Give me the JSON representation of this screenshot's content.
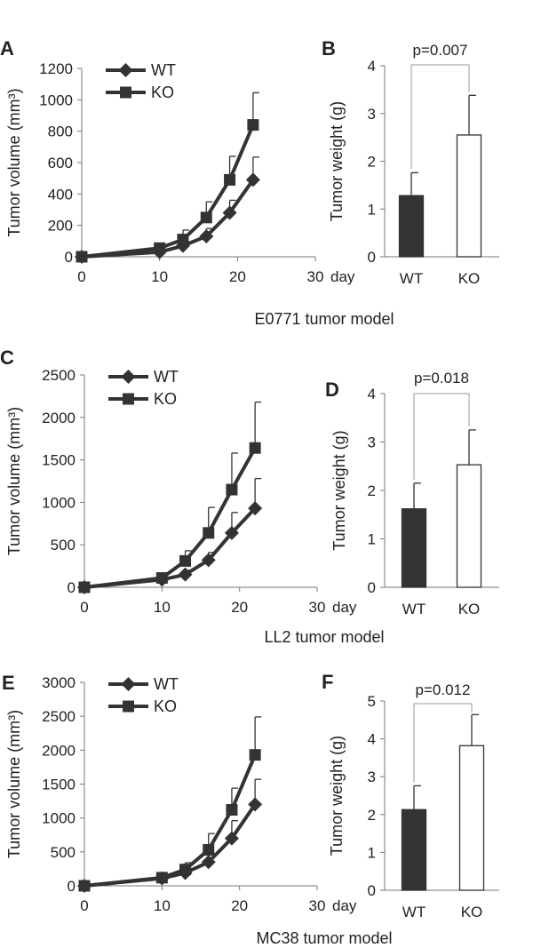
{
  "colors": {
    "line": "#333333",
    "bar_wt": "#333333",
    "bar_ko": "#ffffff",
    "axis": "#777777",
    "bracket": "#999999"
  },
  "chart_data": [
    {
      "id": "A",
      "type": "line",
      "panel_label": "A",
      "ylabel": "Tumor volume (mm³)",
      "ylim": [
        0,
        1200
      ],
      "yticks": [
        0,
        200,
        400,
        600,
        800,
        1000,
        1200
      ],
      "xlim": [
        0,
        30
      ],
      "xticks": [
        0,
        10,
        20,
        30
      ],
      "xunit": "day",
      "legend_position": "top-left",
      "series": [
        {
          "name": "WT",
          "marker": "diamond",
          "x": [
            0,
            10,
            13,
            16,
            19,
            22
          ],
          "y": [
            0,
            30,
            70,
            130,
            280,
            490
          ],
          "err": [
            0,
            15,
            25,
            50,
            80,
            145
          ]
        },
        {
          "name": "KO",
          "marker": "square",
          "x": [
            0,
            10,
            13,
            16,
            19,
            22
          ],
          "y": [
            0,
            55,
            110,
            250,
            490,
            840
          ],
          "err": [
            0,
            20,
            60,
            100,
            150,
            205
          ]
        }
      ],
      "caption": "E0771 tumor model"
    },
    {
      "id": "B",
      "type": "bar",
      "panel_label": "B",
      "ylabel": "Tumor weight (g)",
      "ylim": [
        0,
        4
      ],
      "yticks": [
        0,
        1,
        2,
        3,
        4
      ],
      "categories": [
        "WT",
        "KO"
      ],
      "values": [
        1.28,
        2.55
      ],
      "errors": [
        0.48,
        0.83
      ],
      "pvalue": "p=0.007"
    },
    {
      "id": "C",
      "type": "line",
      "panel_label": "C",
      "ylabel": "Tumor volume (mm³)",
      "ylim": [
        0,
        2500
      ],
      "yticks": [
        0,
        500,
        1000,
        1500,
        2000,
        2500
      ],
      "xlim": [
        0,
        30
      ],
      "xticks": [
        0,
        10,
        20,
        30
      ],
      "xunit": "day",
      "legend_position": "top-left",
      "series": [
        {
          "name": "WT",
          "marker": "diamond",
          "x": [
            0,
            10,
            13,
            16,
            19,
            22
          ],
          "y": [
            0,
            90,
            150,
            320,
            640,
            930
          ],
          "err": [
            0,
            25,
            50,
            90,
            240,
            350
          ]
        },
        {
          "name": "KO",
          "marker": "square",
          "x": [
            0,
            10,
            13,
            16,
            19,
            22
          ],
          "y": [
            0,
            110,
            310,
            640,
            1150,
            1640
          ],
          "err": [
            0,
            40,
            120,
            300,
            430,
            540
          ]
        }
      ],
      "caption": "LL2 tumor model"
    },
    {
      "id": "D",
      "type": "bar",
      "panel_label": "D",
      "ylabel": "Tumor weight (g)",
      "ylim": [
        0,
        4
      ],
      "yticks": [
        0,
        1,
        2,
        3,
        4
      ],
      "categories": [
        "WT",
        "KO"
      ],
      "values": [
        1.62,
        2.53
      ],
      "errors": [
        0.53,
        0.72
      ],
      "pvalue": "p=0.018"
    },
    {
      "id": "E",
      "type": "line",
      "panel_label": "E",
      "ylabel": "Tumor volume (mm³)",
      "ylim": [
        0,
        3000
      ],
      "yticks": [
        0,
        500,
        1000,
        1500,
        2000,
        2500,
        3000
      ],
      "xlim": [
        0,
        30
      ],
      "xticks": [
        0,
        10,
        20,
        30
      ],
      "xunit": "day",
      "legend_position": "top-left",
      "series": [
        {
          "name": "WT",
          "marker": "diamond",
          "x": [
            0,
            10,
            13,
            16,
            19,
            22
          ],
          "y": [
            0,
            110,
            190,
            350,
            700,
            1200
          ],
          "err": [
            0,
            30,
            60,
            130,
            260,
            370
          ]
        },
        {
          "name": "KO",
          "marker": "square",
          "x": [
            0,
            10,
            13,
            16,
            19,
            22
          ],
          "y": [
            0,
            120,
            240,
            530,
            1120,
            1930
          ],
          "err": [
            0,
            40,
            100,
            240,
            320,
            560
          ]
        }
      ],
      "caption": "MC38 tumor model"
    },
    {
      "id": "F",
      "type": "bar",
      "panel_label": "F",
      "ylabel": "Tumor weight (g)",
      "ylim": [
        0,
        5
      ],
      "yticks": [
        0,
        1,
        2,
        3,
        4,
        5
      ],
      "categories": [
        "WT",
        "KO"
      ],
      "values": [
        2.13,
        3.82
      ],
      "errors": [
        0.63,
        0.82
      ],
      "pvalue": "p=0.012"
    }
  ]
}
